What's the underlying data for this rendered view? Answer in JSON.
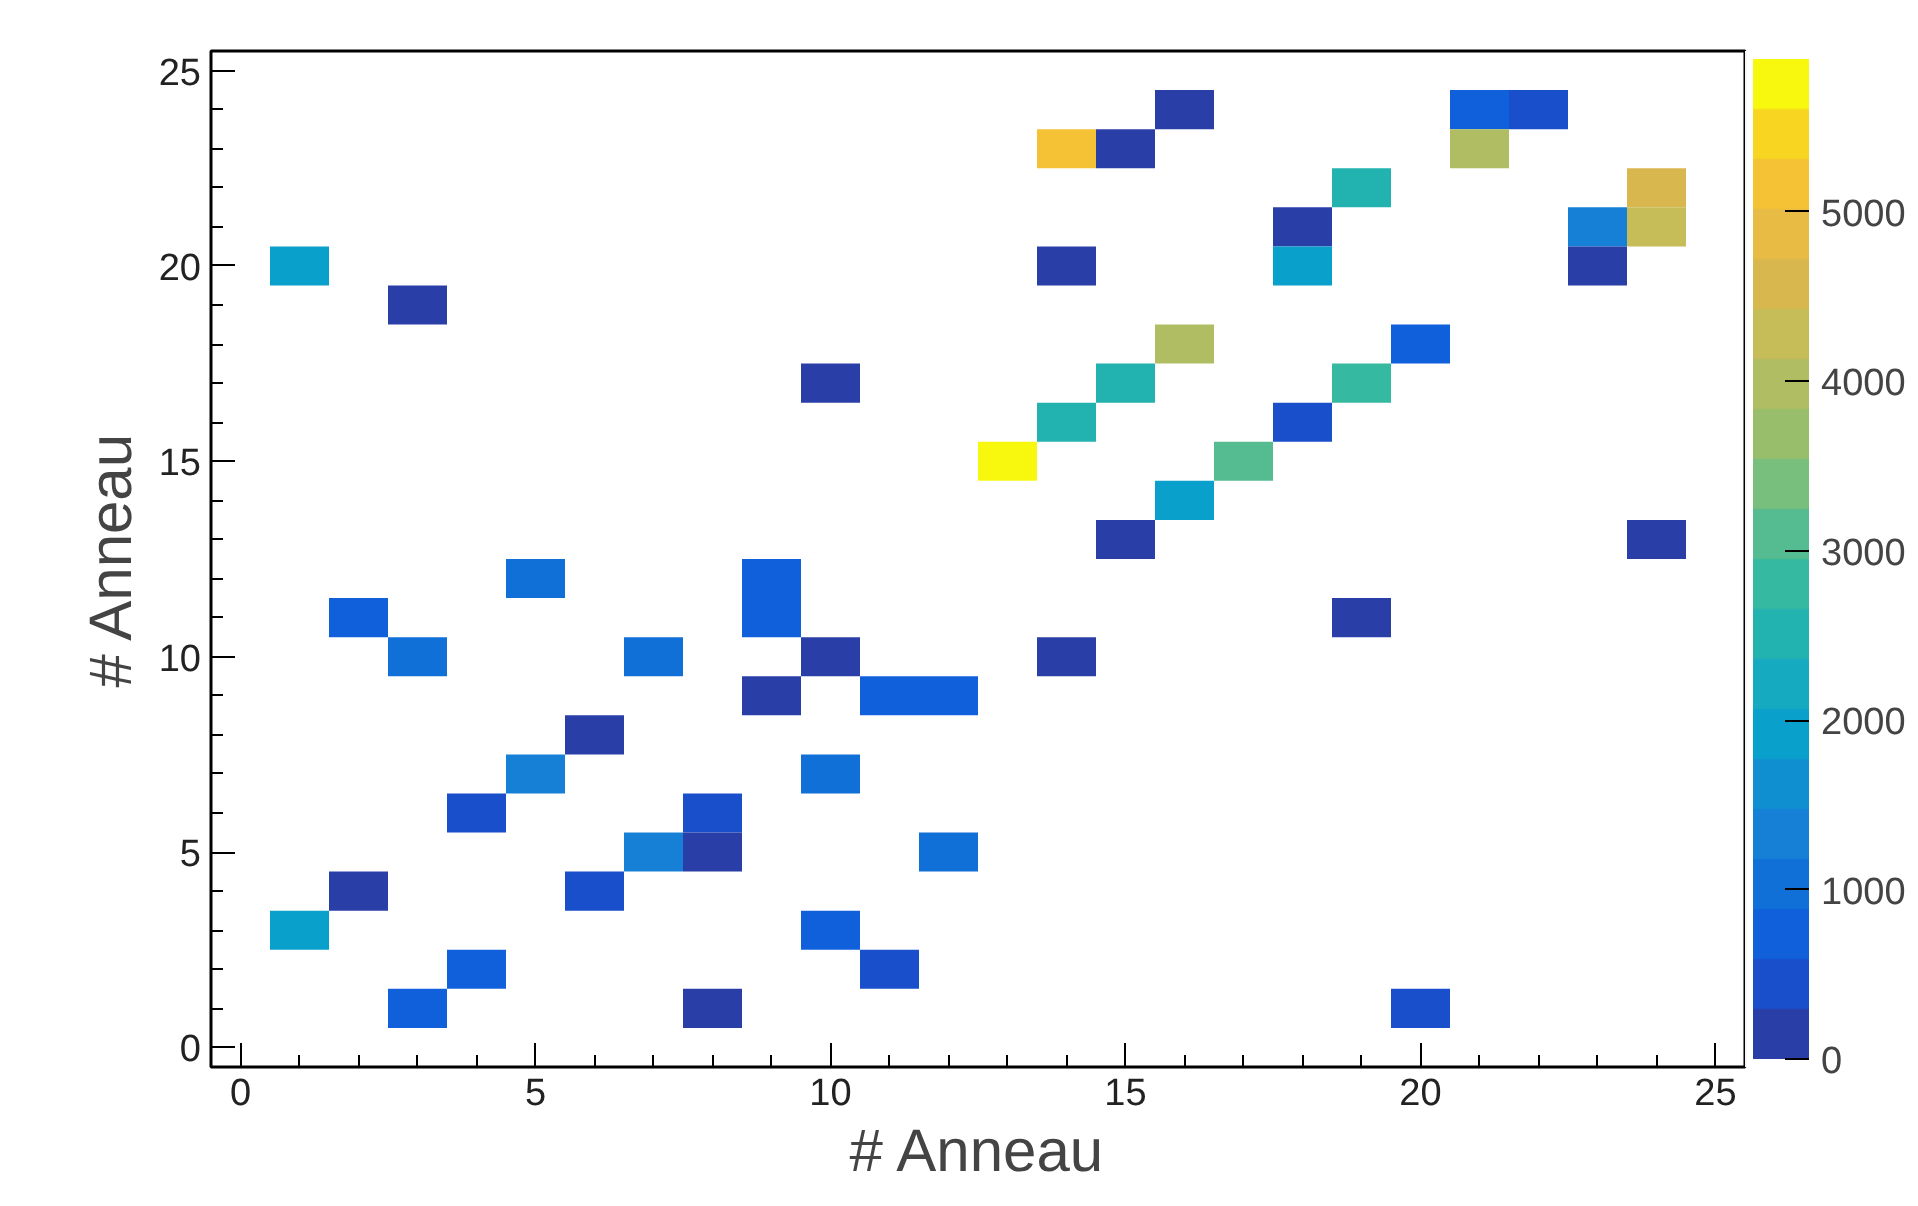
{
  "chart_data": {
    "type": "heatmap",
    "xlabel": "# Anneau",
    "ylabel": "# Anneau",
    "categories": [
      "0",
      null,
      null,
      null,
      null,
      "5",
      null,
      null,
      null,
      null,
      "10",
      null,
      null,
      null,
      null,
      "15",
      null,
      null,
      null,
      null,
      "20",
      null,
      null,
      null,
      null,
      "25"
    ],
    "y_categories": [
      "25",
      null,
      null,
      null,
      null,
      "20",
      null,
      null,
      null,
      null,
      "15",
      null,
      null,
      null,
      null,
      "10",
      null,
      null,
      null,
      null,
      "5",
      null,
      null,
      null,
      null,
      "0"
    ],
    "clim": [
      0,
      5900
    ],
    "cticks": [
      0,
      1000,
      2000,
      3000,
      4000,
      5000
    ],
    "grid": false,
    "cells": [
      [
        null,
        null,
        null,
        null,
        null,
        null,
        null,
        null,
        null,
        null,
        null,
        null,
        null,
        null,
        null,
        null,
        null,
        null,
        null,
        null,
        null,
        null,
        null,
        null,
        null,
        null
      ],
      [
        null,
        null,
        null,
        null,
        null,
        null,
        null,
        null,
        null,
        null,
        null,
        null,
        null,
        null,
        null,
        null,
        150,
        null,
        null,
        null,
        null,
        700,
        450,
        null,
        null,
        null
      ],
      [
        null,
        null,
        null,
        null,
        null,
        null,
        null,
        null,
        null,
        null,
        null,
        null,
        null,
        null,
        5100,
        150,
        null,
        null,
        null,
        null,
        null,
        4000,
        null,
        null,
        null,
        null
      ],
      [
        null,
        null,
        null,
        null,
        null,
        null,
        null,
        null,
        null,
        null,
        null,
        null,
        null,
        null,
        null,
        null,
        null,
        null,
        null,
        2500,
        null,
        null,
        null,
        null,
        4600,
        null
      ],
      [
        null,
        null,
        null,
        null,
        null,
        null,
        null,
        null,
        null,
        null,
        null,
        null,
        null,
        null,
        null,
        null,
        null,
        null,
        150,
        null,
        null,
        null,
        null,
        1300,
        4300,
        null
      ],
      [
        null,
        1900,
        null,
        null,
        null,
        null,
        null,
        null,
        null,
        null,
        null,
        null,
        null,
        null,
        150,
        null,
        null,
        null,
        2000,
        null,
        null,
        null,
        null,
        150,
        null,
        null
      ],
      [
        null,
        null,
        null,
        150,
        null,
        null,
        null,
        null,
        null,
        null,
        null,
        null,
        null,
        null,
        null,
        null,
        null,
        null,
        null,
        null,
        null,
        null,
        null,
        null,
        null,
        null
      ],
      [
        null,
        null,
        null,
        null,
        null,
        null,
        null,
        null,
        null,
        null,
        null,
        null,
        null,
        null,
        null,
        null,
        4000,
        null,
        null,
        null,
        700,
        null,
        null,
        null,
        null,
        null
      ],
      [
        null,
        null,
        null,
        null,
        null,
        null,
        null,
        null,
        null,
        null,
        150,
        null,
        null,
        null,
        null,
        2500,
        null,
        null,
        null,
        2800,
        null,
        null,
        null,
        null,
        null,
        null
      ],
      [
        null,
        null,
        null,
        null,
        null,
        null,
        null,
        null,
        null,
        null,
        null,
        null,
        null,
        null,
        2500,
        null,
        null,
        null,
        450,
        null,
        null,
        null,
        null,
        null,
        null,
        null
      ],
      [
        null,
        null,
        null,
        null,
        null,
        null,
        null,
        null,
        null,
        null,
        null,
        null,
        null,
        5800,
        null,
        null,
        null,
        3100,
        null,
        null,
        null,
        null,
        null,
        null,
        null,
        null
      ],
      [
        null,
        null,
        null,
        null,
        null,
        null,
        null,
        null,
        null,
        null,
        null,
        null,
        null,
        null,
        null,
        null,
        1900,
        null,
        null,
        null,
        null,
        null,
        null,
        null,
        null,
        null
      ],
      [
        null,
        null,
        null,
        null,
        null,
        null,
        null,
        null,
        null,
        null,
        null,
        null,
        null,
        null,
        null,
        150,
        null,
        null,
        null,
        null,
        null,
        null,
        null,
        null,
        150,
        null
      ],
      [
        null,
        null,
        null,
        null,
        null,
        1000,
        null,
        null,
        null,
        700,
        null,
        null,
        null,
        null,
        null,
        null,
        null,
        null,
        null,
        null,
        null,
        null,
        null,
        null,
        null,
        null
      ],
      [
        null,
        null,
        700,
        null,
        null,
        null,
        null,
        null,
        null,
        700,
        null,
        null,
        null,
        null,
        null,
        null,
        null,
        null,
        null,
        150,
        null,
        null,
        null,
        null,
        null,
        null
      ],
      [
        null,
        null,
        null,
        1000,
        null,
        null,
        null,
        1000,
        null,
        null,
        150,
        null,
        null,
        null,
        150,
        null,
        null,
        null,
        null,
        null,
        null,
        null,
        null,
        null,
        null,
        null
      ],
      [
        null,
        null,
        null,
        null,
        null,
        null,
        null,
        null,
        null,
        150,
        null,
        700,
        700,
        null,
        null,
        null,
        null,
        null,
        null,
        null,
        null,
        null,
        null,
        null,
        null,
        null
      ],
      [
        null,
        null,
        null,
        null,
        null,
        null,
        150,
        null,
        null,
        null,
        null,
        null,
        null,
        null,
        null,
        null,
        null,
        null,
        null,
        null,
        null,
        null,
        null,
        null,
        null,
        null
      ],
      [
        null,
        null,
        null,
        null,
        null,
        1300,
        null,
        null,
        null,
        null,
        1000,
        null,
        null,
        null,
        null,
        null,
        null,
        null,
        null,
        null,
        null,
        null,
        null,
        null,
        null,
        null
      ],
      [
        null,
        null,
        null,
        null,
        450,
        null,
        null,
        null,
        450,
        null,
        null,
        null,
        null,
        null,
        null,
        null,
        null,
        null,
        null,
        null,
        null,
        null,
        null,
        null,
        null,
        null
      ],
      [
        null,
        null,
        null,
        null,
        null,
        null,
        null,
        1300,
        150,
        null,
        null,
        null,
        1000,
        null,
        null,
        null,
        null,
        null,
        null,
        null,
        null,
        null,
        null,
        null,
        null,
        null
      ],
      [
        null,
        null,
        150,
        null,
        null,
        null,
        450,
        null,
        null,
        null,
        null,
        null,
        null,
        null,
        null,
        null,
        null,
        null,
        null,
        null,
        null,
        null,
        null,
        null,
        null,
        null
      ],
      [
        null,
        1900,
        null,
        null,
        null,
        null,
        null,
        null,
        null,
        null,
        700,
        null,
        null,
        null,
        null,
        null,
        null,
        null,
        null,
        null,
        null,
        null,
        null,
        null,
        null,
        null
      ],
      [
        null,
        null,
        null,
        null,
        700,
        null,
        null,
        null,
        null,
        null,
        null,
        450,
        null,
        null,
        null,
        null,
        null,
        null,
        null,
        null,
        null,
        null,
        null,
        null,
        null,
        null
      ],
      [
        null,
        null,
        null,
        800,
        null,
        null,
        null,
        null,
        150,
        null,
        null,
        null,
        null,
        null,
        null,
        null,
        null,
        null,
        null,
        null,
        450,
        null,
        null,
        null,
        null,
        null
      ],
      [
        null,
        null,
        null,
        null,
        null,
        null,
        null,
        null,
        null,
        null,
        null,
        null,
        null,
        null,
        null,
        null,
        null,
        null,
        null,
        null,
        null,
        null,
        null,
        null,
        null,
        null
      ]
    ]
  }
}
